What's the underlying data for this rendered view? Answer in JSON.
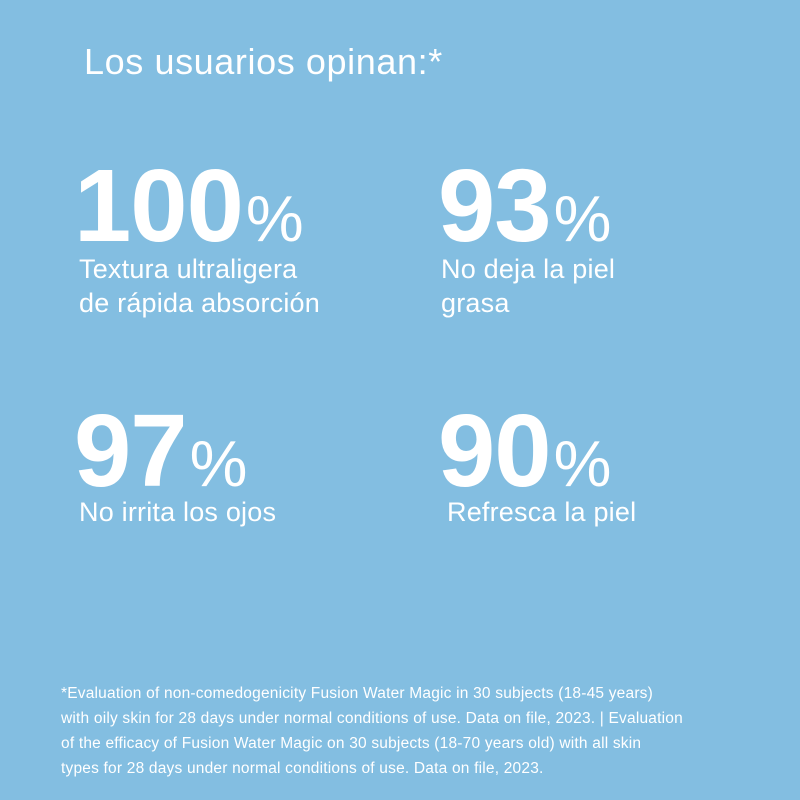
{
  "theme": {
    "background": "#83bee1",
    "text": "#ffffff"
  },
  "title": "Los usuarios opinan:*",
  "stats": [
    {
      "value": "100",
      "unit": "%",
      "label": "Textura ultraligera\nde rápida absorción"
    },
    {
      "value": "93",
      "unit": "%",
      "label": "No deja la piel\ngrasa"
    },
    {
      "value": "97",
      "unit": "%",
      "label": "No irrita los ojos"
    },
    {
      "value": "90",
      "unit": "%",
      "label": "Refresca la piel"
    }
  ],
  "footnote": {
    "lines": [
      "*Evaluation of non-comedogenicity Fusion Water Magic in 30 subjects (18-45 years)",
      "with oily skin for 28 days under normal conditions of use. Data on file, 2023. | Evaluation",
      "of the efficacy of Fusion Water Magic on 30 subjects (18-70 years old) with all skin",
      "types for 28 days under normal conditions of use. Data on file, 2023."
    ]
  }
}
